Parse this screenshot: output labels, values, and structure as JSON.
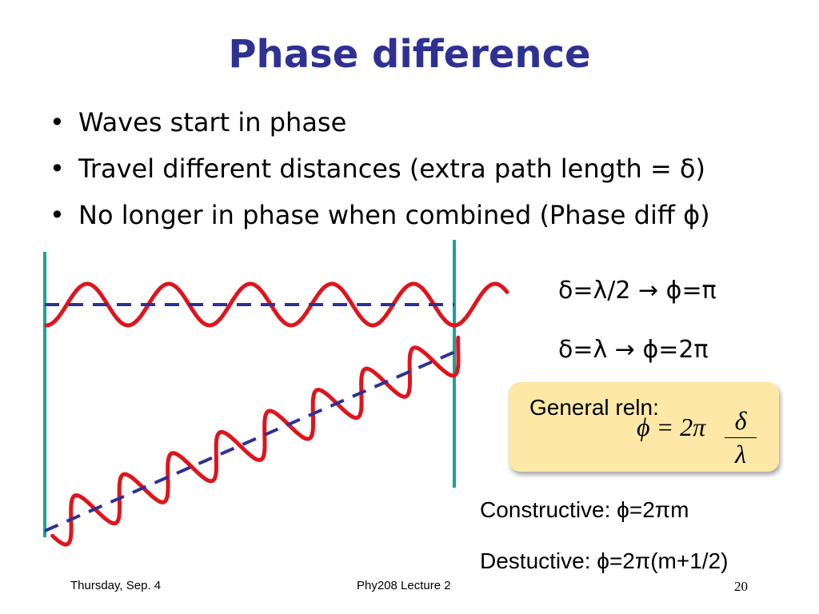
{
  "slide": {
    "title": "Phase difference",
    "bullets": [
      "Waves start in phase",
      "Travel different distances (extra path length = δ)",
      "No longer in phase when combined (Phase diff ϕ)"
    ],
    "bullet_glyph": "•",
    "relations": [
      "δ=λ/2 → ϕ=π",
      "δ=λ → ϕ=2π"
    ],
    "general_box": {
      "label": "General reln:",
      "lhs": "ϕ = 2π",
      "numerator": "δ",
      "denominator": "λ"
    },
    "constructive": "Constructive: ϕ=2πm",
    "destructive": "Destuctive: ϕ=2π(m+1/2)",
    "footer_left": "Thursday, Sep. 4",
    "footer_center": "Phy208 Lecture 2",
    "page_number": "20"
  },
  "colors": {
    "title": "#2e3192",
    "wave": "#e0141b",
    "dashed_line": "#2e3192",
    "vertical_lines": "#1aa39a",
    "box_fill": "#fde8a8"
  }
}
